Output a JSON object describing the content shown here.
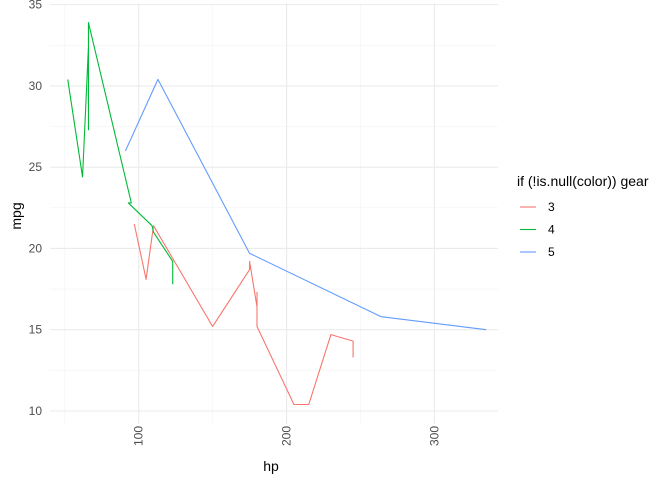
{
  "chart_data": {
    "type": "line",
    "title": "",
    "xlabel": "hp",
    "ylabel": "mpg",
    "xlim": [
      40,
      343
    ],
    "ylim": [
      9.2,
      35.1
    ],
    "x_ticks": [
      100,
      200,
      300
    ],
    "y_ticks": [
      10,
      15,
      20,
      25,
      30,
      35
    ],
    "grid": true,
    "legend": {
      "title": "if (!is.null(color)) gear",
      "position": "right"
    },
    "series": [
      {
        "name": "3",
        "color": "#F8766D",
        "points": [
          [
            97,
            21.5
          ],
          [
            105,
            18.1
          ],
          [
            110,
            21.4
          ],
          [
            150,
            15.2
          ],
          [
            175,
            18.7
          ],
          [
            175,
            19.2
          ],
          [
            180,
            16.4
          ],
          [
            180,
            17.3
          ],
          [
            180,
            15.2
          ],
          [
            205,
            10.4
          ],
          [
            215,
            10.4
          ],
          [
            230,
            14.7
          ],
          [
            245,
            14.3
          ],
          [
            245,
            13.3
          ]
        ]
      },
      {
        "name": "4",
        "color": "#00BA38",
        "points": [
          [
            52,
            30.4
          ],
          [
            62,
            24.4
          ],
          [
            65,
            30.4
          ],
          [
            66,
            32.4
          ],
          [
            66,
            27.3
          ],
          [
            66,
            33.9
          ],
          [
            95,
            22.8
          ],
          [
            93,
            22.8
          ],
          [
            109,
            21.4
          ],
          [
            110,
            21.0
          ],
          [
            110,
            21.0
          ],
          [
            123,
            19.2
          ],
          [
            123,
            17.8
          ]
        ]
      },
      {
        "name": "5",
        "color": "#619CFF",
        "points": [
          [
            91,
            26.0
          ],
          [
            113,
            30.4
          ],
          [
            175,
            19.7
          ],
          [
            264,
            15.8
          ],
          [
            335,
            15.0
          ]
        ]
      }
    ]
  }
}
